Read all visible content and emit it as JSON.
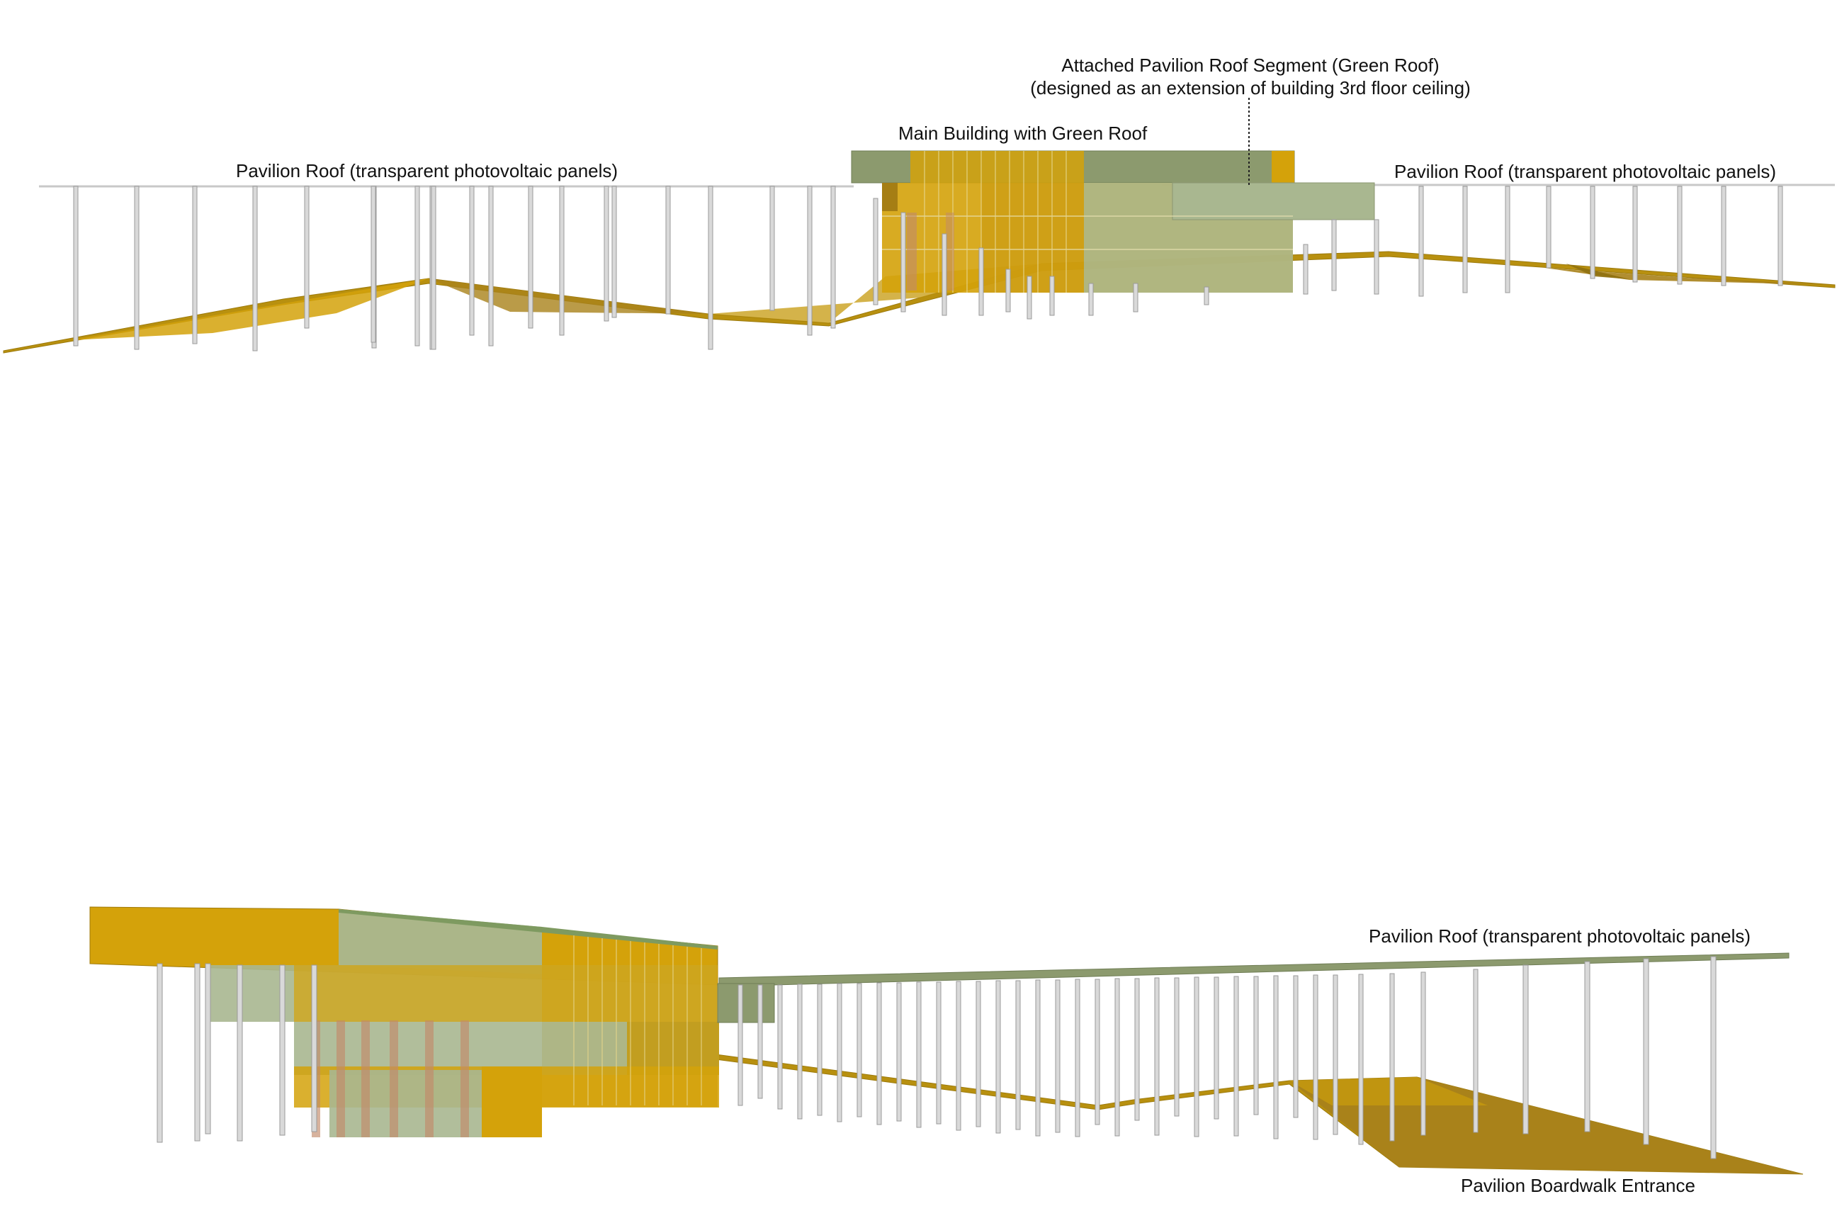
{
  "top_elevation": {
    "label_pavilion_left": "Pavilion Roof  (transparent photovoltaic panels)",
    "label_main_building": "Main Building with Green Roof",
    "label_attached_line1": "Attached Pavilion Roof Segment (Green Roof)",
    "label_attached_line2": "(designed as an extension of building 3rd floor ceiling)",
    "label_pavilion_right": "Pavilion Roof  (transparent photovoltaic panels)"
  },
  "bottom_elevation": {
    "label_pavilion_roof": "Pavilion Roof  (transparent photovoltaic panels)",
    "label_boardwalk": "Pavilion Boardwalk Entrance"
  },
  "colors": {
    "boardwalk_gold": "#b8900f",
    "boardwalk_dark": "#9c7a0c",
    "panel_amber": "#d4a20a",
    "glass_green": "#a9b790",
    "green_roof": "#8c9a6e",
    "column_grey": "#d0d0d0",
    "column_edge": "#9a9a9a",
    "roof_line": "#c4c4c4"
  },
  "icons": [
    "column-icon"
  ]
}
